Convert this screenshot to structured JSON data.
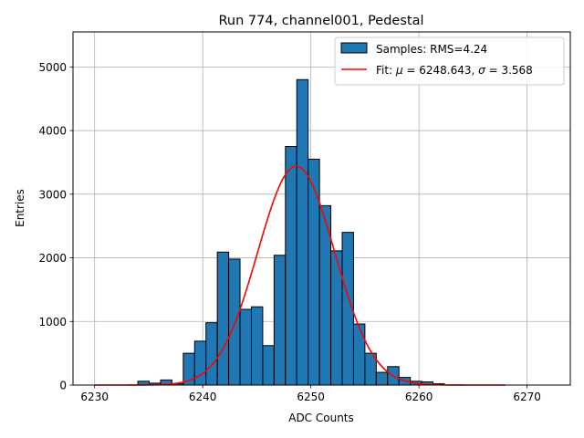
{
  "chart_data": {
    "type": "bar",
    "title": "Run 774, channel001, Pedestal",
    "xlabel": "ADC Counts",
    "ylabel": "Entries",
    "xlim": [
      6228,
      6274
    ],
    "ylim": [
      0,
      5550
    ],
    "xticks": [
      6230,
      6240,
      6250,
      6260,
      6270
    ],
    "yticks": [
      0,
      1000,
      2000,
      3000,
      4000,
      5000
    ],
    "grid": true,
    "legend_position": "top-right",
    "histogram": {
      "name": "Samples: RMS=4.24",
      "color": "#1f77b4",
      "bin_width": 1.05,
      "bins": [
        {
          "x": 6234,
          "count": 60
        },
        {
          "x": 6235.05,
          "count": 30
        },
        {
          "x": 6236.1,
          "count": 80
        },
        {
          "x": 6237.15,
          "count": 20
        },
        {
          "x": 6238.2,
          "count": 500
        },
        {
          "x": 6239.25,
          "count": 690
        },
        {
          "x": 6240.3,
          "count": 980
        },
        {
          "x": 6241.35,
          "count": 2090
        },
        {
          "x": 6242.4,
          "count": 1980
        },
        {
          "x": 6243.45,
          "count": 1190
        },
        {
          "x": 6244.5,
          "count": 1230
        },
        {
          "x": 6245.55,
          "count": 620
        },
        {
          "x": 6246.6,
          "count": 2040
        },
        {
          "x": 6247.65,
          "count": 3750
        },
        {
          "x": 6248.7,
          "count": 4800
        },
        {
          "x": 6249.75,
          "count": 3550
        },
        {
          "x": 6250.8,
          "count": 2820
        },
        {
          "x": 6251.85,
          "count": 2110
        },
        {
          "x": 6252.9,
          "count": 2400
        },
        {
          "x": 6253.95,
          "count": 960
        },
        {
          "x": 6255,
          "count": 500
        },
        {
          "x": 6256.05,
          "count": 200
        },
        {
          "x": 6257.1,
          "count": 290
        },
        {
          "x": 6258.15,
          "count": 120
        },
        {
          "x": 6259.2,
          "count": 60
        },
        {
          "x": 6260.25,
          "count": 50
        },
        {
          "x": 6261.3,
          "count": 20
        }
      ]
    },
    "fit": {
      "name": "Fit: μ = 6248.643, σ = 3.568",
      "label_prefix": "Fit: ",
      "mu_symbol": "μ",
      "mu_value": " = 6248.643, ",
      "sigma_symbol": "σ",
      "sigma_value": " = 3.568",
      "color": "#ff0000",
      "mu": 6248.643,
      "sigma": 3.568,
      "amplitude": 3440,
      "x_range": [
        6230,
        6268
      ]
    }
  }
}
